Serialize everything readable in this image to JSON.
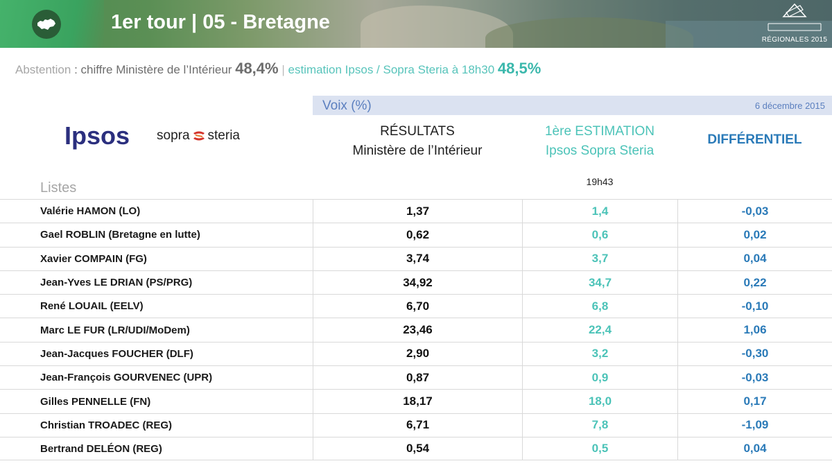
{
  "header": {
    "title": "1er tour | 05 - Bretagne",
    "brand_label": "RÉGIONALES 2015"
  },
  "abstention": {
    "label": "Abstention",
    "sep1": " : ",
    "source1": "chiffre Ministère de l’Intérieur",
    "value1": "48,4%",
    "divider": "|",
    "source2": "estimation Ipsos / Sopra Steria à 18h30",
    "value2": "48,5%"
  },
  "voix": {
    "label": "Voix (%)",
    "date": "6 décembre 2015"
  },
  "logos": {
    "ipsos": "Ipsos",
    "sopra_left": "sopra",
    "sopra_right": "steria"
  },
  "columns": {
    "results_line1": "RÉSULTATS",
    "results_line2": "Ministère de l’Intérieur",
    "estimate_line1": "1ère ESTIMATION",
    "estimate_line2": "Ipsos Sopra Steria",
    "differential": "DIFFÉRENTIEL",
    "estimate_time": "19h43",
    "lists_label": "Listes"
  },
  "rows": [
    {
      "name": "Valérie HAMON (LO)",
      "result": "1,37",
      "estimate": "1,4",
      "diff": "-0,03"
    },
    {
      "name": "Gael ROBLIN (Bretagne en lutte)",
      "result": "0,62",
      "estimate": "0,6",
      "diff": "0,02"
    },
    {
      "name": "Xavier COMPAIN (FG)",
      "result": "3,74",
      "estimate": "3,7",
      "diff": "0,04"
    },
    {
      "name": "Jean-Yves LE DRIAN (PS/PRG)",
      "result": "34,92",
      "estimate": "34,7",
      "diff": "0,22"
    },
    {
      "name": "René LOUAIL (EELV)",
      "result": "6,70",
      "estimate": "6,8",
      "diff": "-0,10"
    },
    {
      "name": "Marc LE FUR (LR/UDI/MoDem)",
      "result": "23,46",
      "estimate": "22,4",
      "diff": "1,06"
    },
    {
      "name": "Jean-Jacques FOUCHER (DLF)",
      "result": "2,90",
      "estimate": "3,2",
      "diff": "-0,30"
    },
    {
      "name": "Jean-François GOURVENEC (UPR)",
      "result": "0,87",
      "estimate": "0,9",
      "diff": "-0,03"
    },
    {
      "name": "Gilles PENNELLE (FN)",
      "result": "18,17",
      "estimate": "18,0",
      "diff": "0,17"
    },
    {
      "name": "Christian TROADEC (REG)",
      "result": "6,71",
      "estimate": "7,8",
      "diff": "-1,09"
    },
    {
      "name": "Bertrand DELÉON (REG)",
      "result": "0,54",
      "estimate": "0,5",
      "diff": "0,04"
    }
  ],
  "icons": {
    "region_map": "bretagne-map-icon",
    "ballot_box": "ballot-box-icon",
    "sopra_mark": "sopra-steria-mark-icon"
  },
  "colors": {
    "header_green": "#45b26b",
    "teal": "#4cc3b8",
    "blue": "#2a7ab8",
    "ipsos_navy": "#2b2f7e",
    "voix_bar": "#dbe2f1"
  }
}
